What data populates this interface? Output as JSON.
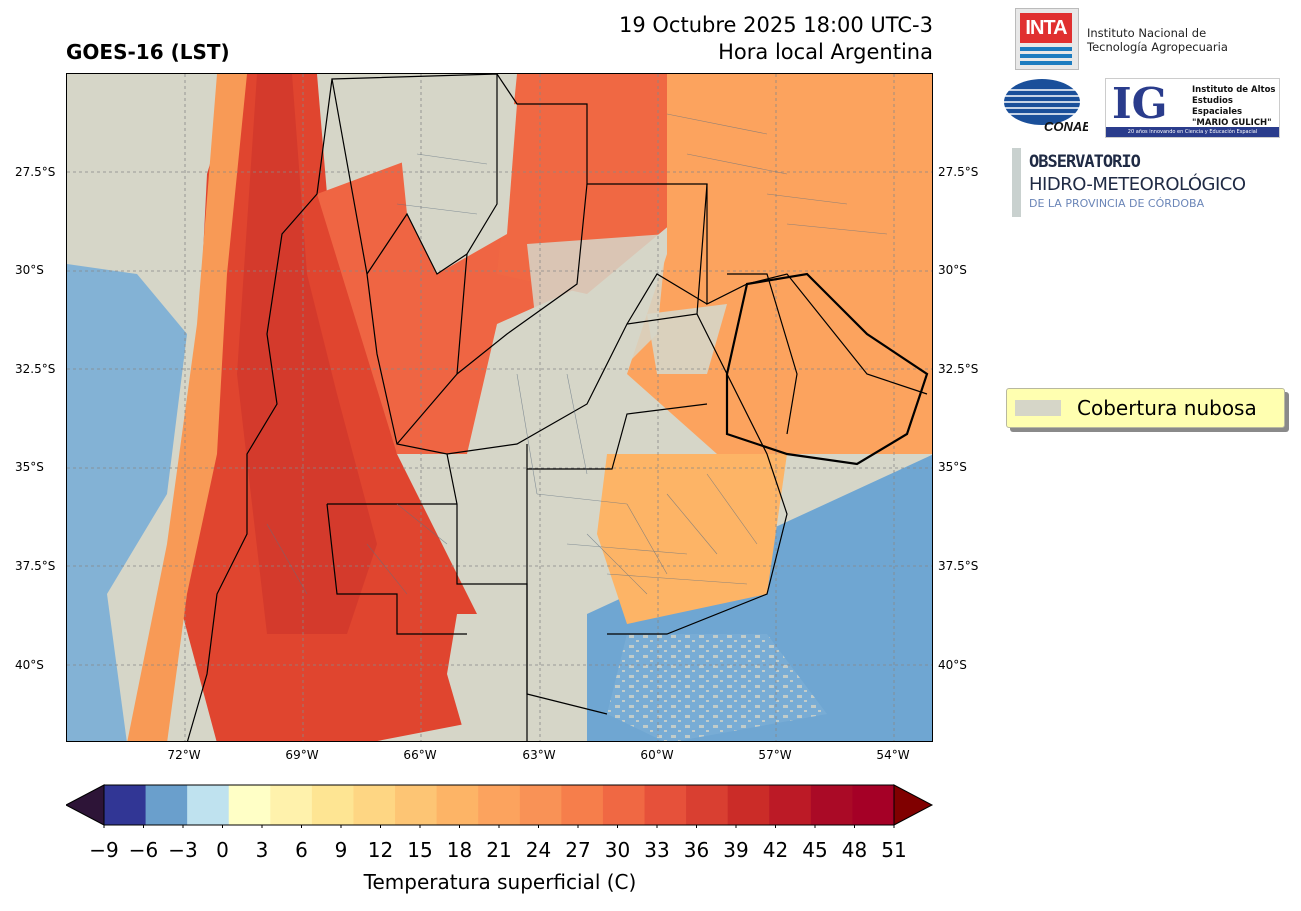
{
  "header": {
    "title": "GOES-16 (LST)",
    "date_line": "19 Octubre 2025 18:00 UTC-3",
    "local_line": "Hora local Argentina"
  },
  "map": {
    "lat_ticks": [
      "27.5°S",
      "30°S",
      "32.5°S",
      "35°S",
      "37.5°S",
      "40°S"
    ],
    "lon_ticks": [
      "72°W",
      "69°W",
      "66°W",
      "63°W",
      "60°W",
      "57°W",
      "54°W"
    ],
    "extent": {
      "lon": [
        -75,
        -53
      ],
      "lat": [
        -25,
        -42
      ]
    },
    "cloud_color": "#d6d6c8",
    "grid": "dashed"
  },
  "legend": {
    "label": "Cobertura nubosa",
    "color": "#d6d6c8"
  },
  "colorbar": {
    "title": "Temperatura superficial (C)",
    "ticks": [
      "−9",
      "−6",
      "−3",
      "0",
      "3",
      "6",
      "9",
      "12",
      "15",
      "18",
      "21",
      "24",
      "27",
      "30",
      "33",
      "36",
      "39",
      "42",
      "45",
      "48",
      "51"
    ],
    "colors": [
      "#313695",
      "#6a9fcc",
      "#bfe2ef",
      "#ffffc6",
      "#fff2ac",
      "#fee593",
      "#fed683",
      "#fdc574",
      "#fdb466",
      "#fca35e",
      "#f99256",
      "#f67e4b",
      "#f06843",
      "#e6513a",
      "#d93f31",
      "#cb2c28",
      "#bc1a26",
      "#aa0a26",
      "#a50026"
    ],
    "under_color": "#2d1437",
    "over_color": "#800000"
  },
  "logos": {
    "inta_mark": "INTA",
    "inta_name_1": "Instituto Nacional de",
    "inta_name_2": "Tecnología Agropecuaria",
    "conae_mark": "CONAE",
    "ig_mark": "IG",
    "ig_text_1": "Instituto de Altos",
    "ig_text_2": "Estudios Espaciales",
    "ig_text_3": "\"MARIO GULICH\"",
    "ig_strip": "20 años innovando en Ciencia y Educación Espacial",
    "obs_1": "OBSERVATORIO",
    "obs_2": "HIDRO-METEOROLÓGICO",
    "obs_3": "DE LA PROVINCIA DE CÓRDOBA"
  }
}
